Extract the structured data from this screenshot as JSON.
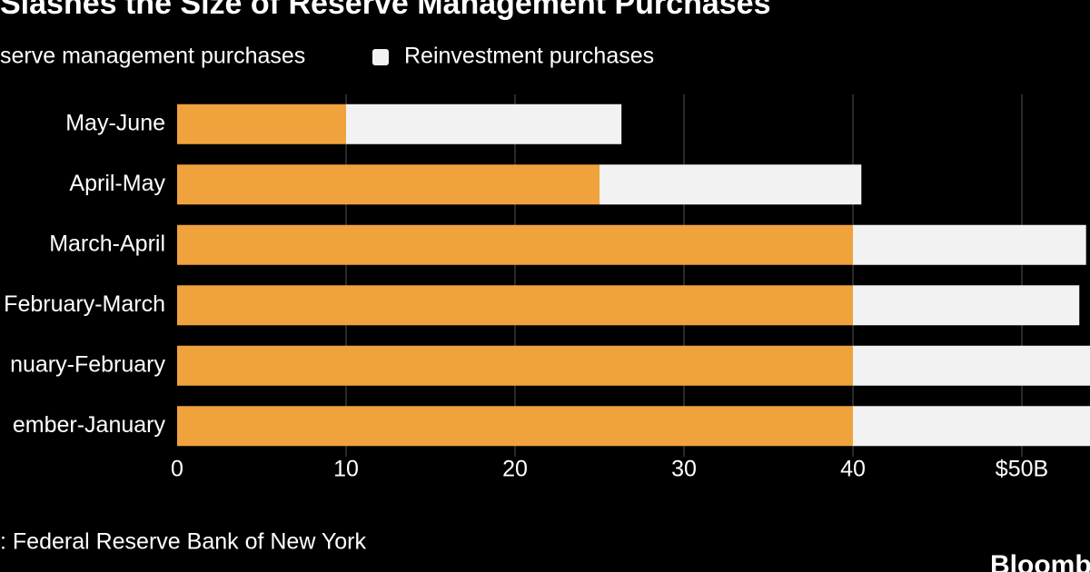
{
  "chart_data": {
    "type": "hbar-stacked",
    "title": "Slashes the Size of Reserve Management Purchases",
    "categories": [
      "May-June",
      "April-May",
      "March-April",
      "February-March",
      "nuary-February",
      "ember-January"
    ],
    "series": [
      {
        "name": "serve management purchases",
        "color": "#f0a23d",
        "values": [
          10,
          25,
          40,
          40,
          40,
          40
        ]
      },
      {
        "name": "Reinvestment purchases",
        "color": "#f2f2f2",
        "values": [
          16.3,
          15.5,
          13.8,
          13.4,
          14.5,
          14.5
        ]
      }
    ],
    "xlim": [
      0,
      54
    ],
    "xticks": [
      0,
      10,
      20,
      30,
      40,
      {
        "value": 50,
        "label": "$50B"
      }
    ],
    "grid": true,
    "source": ": Federal Reserve Bank of New York",
    "brand": "Bloomb"
  }
}
